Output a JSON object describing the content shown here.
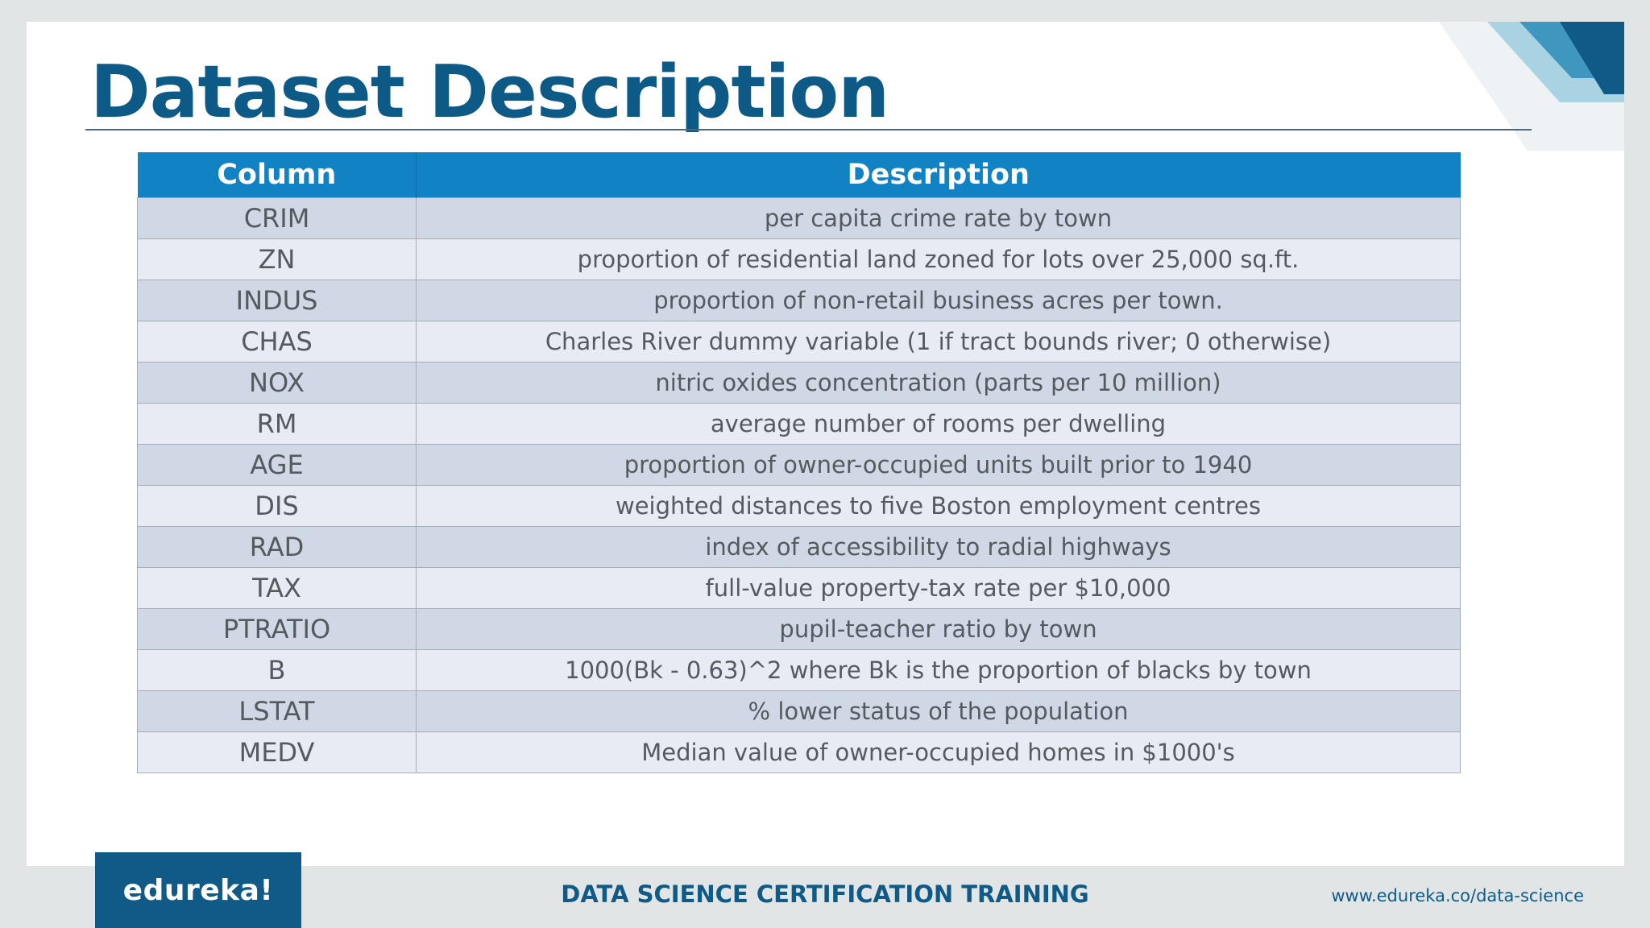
{
  "slide": {
    "title": "Dataset Description",
    "accent_color": "#0e5a86",
    "header_color": "#1182c3"
  },
  "table": {
    "headers": [
      "Column",
      "Description"
    ],
    "rows": [
      {
        "column": "CRIM",
        "description": "per capita crime rate by town"
      },
      {
        "column": "ZN",
        "description": "proportion of residential land zoned for lots over 25,000 sq.ft."
      },
      {
        "column": "INDUS",
        "description": "proportion of non-retail business acres per town."
      },
      {
        "column": "CHAS",
        "description": "Charles River dummy variable (1 if tract bounds river; 0 otherwise)"
      },
      {
        "column": "NOX",
        "description": "nitric oxides concentration (parts per 10 million)"
      },
      {
        "column": "RM",
        "description": "average number of rooms per dwelling"
      },
      {
        "column": "AGE",
        "description": "proportion of owner-occupied units built prior to 1940"
      },
      {
        "column": "DIS",
        "description": "weighted distances to five Boston employment centres"
      },
      {
        "column": "RAD",
        "description": "index of accessibility to radial highways"
      },
      {
        "column": "TAX",
        "description": "full-value property-tax rate per $10,000"
      },
      {
        "column": "PTRATIO",
        "description": "pupil-teacher ratio by town"
      },
      {
        "column": "B",
        "description": "1000(Bk - 0.63)^2 where Bk is the proportion of blacks by town"
      },
      {
        "column": "LSTAT",
        "description": "% lower status of the population"
      },
      {
        "column": "MEDV",
        "description": "Median value of owner-occupied homes in $1000's"
      }
    ]
  },
  "footer": {
    "logo_text": "edureka!",
    "course_title": "DATA SCIENCE CERTIFICATION TRAINING",
    "url": "www.edureka.co/data-science"
  }
}
